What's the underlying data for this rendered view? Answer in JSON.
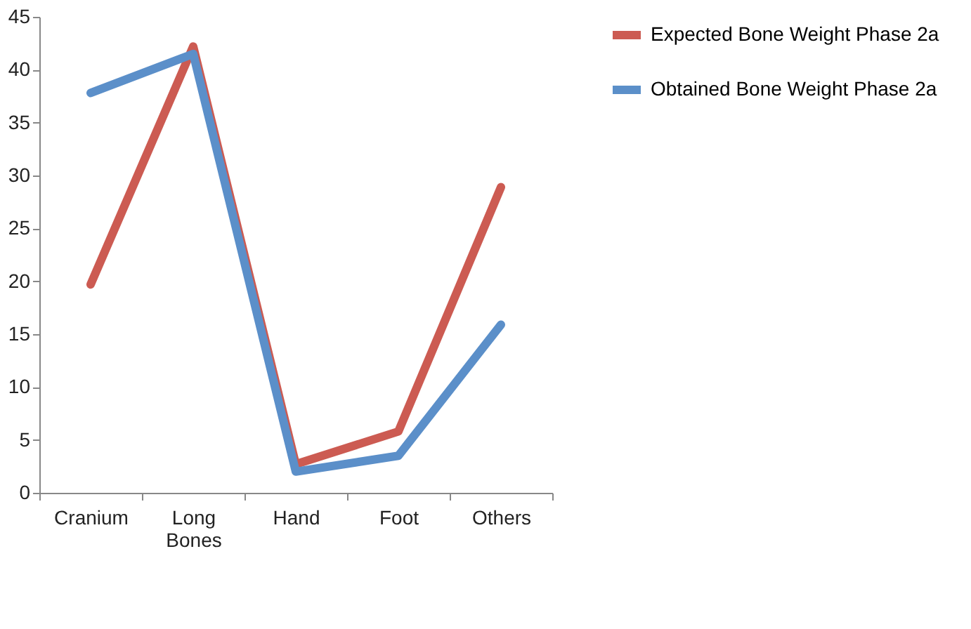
{
  "chart_data": {
    "type": "line",
    "categories": [
      "Cranium",
      "Long Bones",
      "Hand",
      "Foot",
      "Others"
    ],
    "series": [
      {
        "name": "Expected Bone Weight Phase 2a",
        "color": "#cc5b52",
        "values": [
          19.7,
          42.2,
          2.7,
          5.8,
          28.9
        ]
      },
      {
        "name": "Obtained Bone Weight Phase 2a",
        "color": "#5b8fc9",
        "values": [
          37.8,
          41.5,
          2.0,
          3.5,
          15.9
        ]
      }
    ],
    "ylim": [
      0,
      45
    ],
    "yticks": [
      0,
      5,
      10,
      15,
      20,
      25,
      30,
      35,
      40,
      45
    ],
    "grid": false,
    "legend": "right",
    "marker": "none",
    "line_style": "solid"
  }
}
